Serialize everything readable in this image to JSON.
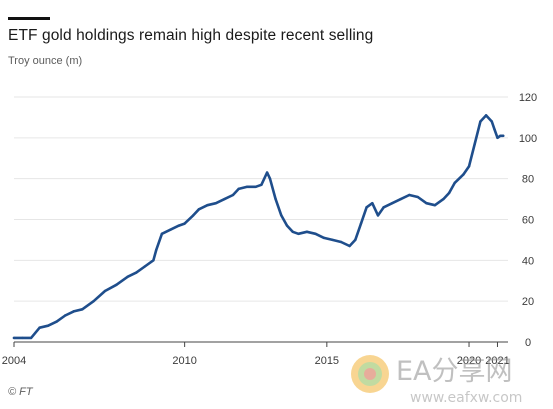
{
  "header": {
    "title": "ETF gold holdings remain high despite recent selling",
    "subtitle": "Troy ounce (m)"
  },
  "footer": {
    "source": "© FT"
  },
  "watermark": {
    "brand": "EA分享网",
    "url": "www.eafxw.com"
  },
  "colors": {
    "line": "#1f4e8c",
    "grid": "#e6e6e6",
    "axis": "#444444"
  },
  "chart_data": {
    "type": "line",
    "title": "ETF gold holdings remain high despite recent selling",
    "ylabel": "Troy ounce (m)",
    "xlim": [
      2004,
      2021.3
    ],
    "ylim": [
      0,
      120
    ],
    "yticks": [
      0,
      20,
      40,
      60,
      80,
      100,
      120
    ],
    "xticks": [
      {
        "value": 2004,
        "label": "2004"
      },
      {
        "value": 2010,
        "label": "2010"
      },
      {
        "value": 2015,
        "label": "2015"
      },
      {
        "value": 2020,
        "label": "2020"
      },
      {
        "value": 2021,
        "label": "2021"
      }
    ],
    "grid": "horizontal",
    "y_axis_position": "right",
    "series": [
      {
        "x": [
          2004.0,
          2004.3,
          2004.6,
          2004.9,
          2005.2,
          2005.5,
          2005.8,
          2006.1,
          2006.4,
          2006.8,
          2007.2,
          2007.6,
          2008.0,
          2008.3,
          2008.6,
          2008.9,
          2009.0,
          2009.2,
          2009.5,
          2009.8,
          2010.0,
          2010.3,
          2010.5,
          2010.8,
          2011.1,
          2011.4,
          2011.7,
          2011.9,
          2012.2,
          2012.5,
          2012.7,
          2012.9,
          2013.0,
          2013.2,
          2013.4,
          2013.6,
          2013.8,
          2014.0,
          2014.3,
          2014.6,
          2014.9,
          2015.2,
          2015.5,
          2015.8,
          2016.0,
          2016.2,
          2016.4,
          2016.6,
          2016.8,
          2017.0,
          2017.3,
          2017.6,
          2017.9,
          2018.2,
          2018.5,
          2018.8,
          2019.1,
          2019.3,
          2019.5,
          2019.8,
          2020.0,
          2020.2,
          2020.4,
          2020.6,
          2020.8,
          2020.9,
          2021.0,
          2021.1,
          2021.2
        ],
        "values": [
          2,
          2,
          2,
          7,
          8,
          10,
          13,
          15,
          16,
          20,
          25,
          28,
          32,
          34,
          37,
          40,
          45,
          53,
          55,
          57,
          58,
          62,
          65,
          67,
          68,
          70,
          72,
          75,
          76,
          76,
          77,
          83,
          80,
          70,
          62,
          57,
          54,
          53,
          54,
          53,
          51,
          50,
          49,
          47,
          50,
          58,
          66,
          68,
          62,
          66,
          68,
          70,
          72,
          71,
          68,
          67,
          70,
          73,
          78,
          82,
          86,
          97,
          108,
          111,
          108,
          104,
          100,
          101,
          101
        ]
      }
    ]
  }
}
